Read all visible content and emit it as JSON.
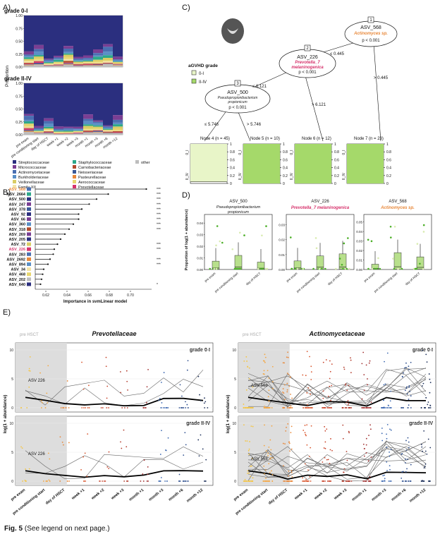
{
  "panelA": {
    "label": "A)",
    "grades": [
      "grade 0-I",
      "grade II-IV"
    ],
    "ylabel": "Proportion",
    "yticks": [
      "0.00",
      "0.25",
      "0.50",
      "0.75",
      "1.00"
    ],
    "timepoints": [
      "pre exam",
      "pre conditioning start",
      "day of HSCT",
      "week +1",
      "week +2",
      "week +3",
      "month +1",
      "month +3",
      "month +6",
      "month +12"
    ],
    "legend": [
      {
        "name": "Streptococcaceae",
        "color": "#2b2f7f"
      },
      {
        "name": "Staphylococcaceae",
        "color": "#2ca88a"
      },
      {
        "name": "other",
        "color": "#bdbdbd"
      },
      {
        "name": "Micrococcaceae",
        "color": "#7a3e93"
      },
      {
        "name": "Carnobacteriaceae",
        "color": "#b24a2c"
      },
      {
        "name": "Actinomycetaceae",
        "color": "#4a6fb2"
      },
      {
        "name": "Neisseriaceae",
        "color": "#3b5998"
      },
      {
        "name": "Burkholderiaceae",
        "color": "#5a8fc6"
      },
      {
        "name": "Pasteurellaceae",
        "color": "#e8883a"
      },
      {
        "name": "Veillonellaceae",
        "color": "#d9cc64"
      },
      {
        "name": "Aerococcaceae",
        "color": "#e8d66e"
      },
      {
        "name": "Family XI",
        "color": "#f3e3a8"
      },
      {
        "name": "Prevotellaceae",
        "color": "#d6336c"
      }
    ]
  },
  "panelB": {
    "label": "B)",
    "xlabel": "Importance in svmLinear model",
    "xticks": [
      "0.62",
      "0.64",
      "0.66",
      "0.68",
      "0.70"
    ],
    "features": [
      {
        "name": "ASV_568",
        "importance": 0.715,
        "stars": "***",
        "color": "#e8883a"
      },
      {
        "name": "ASV_2664",
        "importance": 0.679,
        "stars": "***",
        "color": "#111111"
      },
      {
        "name": "ASV_500",
        "importance": 0.668,
        "stars": "***",
        "color": "#111111"
      },
      {
        "name": "ASV_247",
        "importance": 0.661,
        "stars": "***",
        "color": "#111111"
      },
      {
        "name": "ASV_378",
        "importance": 0.654,
        "stars": "***",
        "color": "#111111"
      },
      {
        "name": "ASV_92",
        "importance": 0.651,
        "stars": "***",
        "color": "#111111"
      },
      {
        "name": "ASV_66",
        "importance": 0.651,
        "stars": "***",
        "color": "#111111"
      },
      {
        "name": "ASV_360",
        "importance": 0.646,
        "stars": "***",
        "color": "#111111"
      },
      {
        "name": "ASV_318",
        "importance": 0.642,
        "stars": "***",
        "color": "#111111"
      },
      {
        "name": "ASV_269",
        "importance": 0.638,
        "stars": "",
        "color": "#111111"
      },
      {
        "name": "ASV_205",
        "importance": 0.634,
        "stars": "",
        "color": "#111111"
      },
      {
        "name": "ASV_72",
        "importance": 0.631,
        "stars": "***",
        "color": "#111111"
      },
      {
        "name": "ASV_226",
        "importance": 0.628,
        "stars": "***",
        "color": "#d6336c"
      },
      {
        "name": "ASV_283",
        "importance": 0.627,
        "stars": "",
        "color": "#111111"
      },
      {
        "name": "ASV_2692",
        "importance": 0.624,
        "stars": "***",
        "color": "#111111"
      },
      {
        "name": "ASV_894",
        "importance": 0.622,
        "stars": "***",
        "color": "#111111"
      },
      {
        "name": "ASV_34",
        "importance": 0.618,
        "stars": "",
        "color": "#111111"
      },
      {
        "name": "ASV_468",
        "importance": 0.617,
        "stars": "",
        "color": "#111111"
      },
      {
        "name": "ASV_202",
        "importance": 0.616,
        "stars": "",
        "color": "#111111"
      },
      {
        "name": "ASV_640",
        "importance": 0.615,
        "stars": "*",
        "color": "#111111"
      }
    ]
  },
  "panelC": {
    "label": "C)",
    "legend_title": "aGVHD grade",
    "legend_items": [
      "0-I",
      "II-IV"
    ],
    "nodes": [
      {
        "id": "1",
        "asv": "ASV_568",
        "taxon": "Actinomyces sp.",
        "taxon_color": "#e8883a",
        "p": "p < 0.001"
      },
      {
        "id": "2",
        "asv": "ASV_226",
        "taxon": "Prevotella_7 melaninogenica",
        "taxon_color": "#d6336c",
        "p": "p < 0.001"
      },
      {
        "id": "3",
        "asv": "ASV_500",
        "taxon": "Pseudopropionibacterium propionicum",
        "taxon_color": "#222222",
        "p": "p < 0.001"
      }
    ],
    "edges": [
      "≤ 0.445",
      "> 0.445",
      "≤ 6.121",
      "> 6.121",
      "≤ 5.746",
      "> 5.746"
    ],
    "leaves": [
      "Node 4 (n = 45)",
      "Node 5 (n = 10)",
      "Node 6 (n = 12)",
      "Node 7 (n = 23)"
    ],
    "leaf_fractions": [
      0.04,
      0.0,
      0.0,
      0.0
    ],
    "leaf_yticks": [
      "0",
      "0.2",
      "0.4",
      "0.6",
      "0.8",
      "1"
    ],
    "leaf_cats": [
      "0_I",
      "II_IV"
    ]
  },
  "panelD": {
    "label": "D)",
    "ylabel": "Proportion of log(1 + abundance)",
    "xcats": [
      "pre exam",
      "pre conditioning start",
      "day of HSCT"
    ],
    "plots": [
      {
        "asv": "ASV_500",
        "taxon": "Pseudopropionibacterium propionicum",
        "color": "#222222",
        "ymax": 0.045,
        "yticks": [
          "0.00",
          "0.01",
          "0.02",
          "0.03",
          "0.04"
        ]
      },
      {
        "asv": "ASV_226",
        "taxon": "Prevotella_7 melaninogenica",
        "color": "#d6336c",
        "ymax": 0.035,
        "yticks": [
          "0.00",
          "0.01",
          "0.02",
          "0.03"
        ]
      },
      {
        "asv": "ASV_568",
        "taxon": "Actinomyces sp.",
        "color": "#e8883a",
        "ymax": 0.055,
        "yticks": [
          "0.00",
          "0.01",
          "0.02",
          "0.03",
          "0.04",
          "0.05"
        ]
      }
    ]
  },
  "panelE": {
    "label": "E)",
    "shade_label": "pre HSCT",
    "ylabel": "log(1 + abundance)",
    "yticks": [
      "0",
      "5",
      "10"
    ],
    "titles": [
      "Prevotellaceae",
      "Actinomycetaceae"
    ],
    "grades": [
      "grade 0-I",
      "grade II-IV"
    ],
    "asv_labels": [
      "ASV 226",
      "ASV 568"
    ],
    "timepoints": [
      "pre exam",
      "pre conditioning start",
      "day of HSCT",
      "week +1",
      "week +2",
      "week +3",
      "month +1",
      "month +3",
      "month +6",
      "month +12"
    ],
    "point_colors": [
      "#f5c542",
      "#f5a742",
      "#e8883a",
      "#d9542b",
      "#c8442b",
      "#b23a2b",
      "#a02c2c",
      "#3b67b0",
      "#2e4f8f",
      "#1c2f5a"
    ]
  },
  "caption": {
    "bold": "Fig. 5",
    "text": " (See legend on next page.)"
  }
}
